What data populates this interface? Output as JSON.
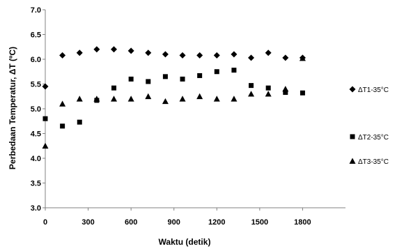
{
  "chart_data": {
    "type": "scatter",
    "title": "",
    "xlabel": "Waktu (detik)",
    "ylabel": "Perbedaan Temperatur,  ΔT (ºC)",
    "xlim": [
      0,
      2100
    ],
    "ylim": [
      3.0,
      7.0
    ],
    "xticks": [
      "0",
      "300",
      "600",
      "900",
      "1200",
      "1500",
      "1800"
    ],
    "yticks": [
      "3.0",
      "3.5",
      "4.0",
      "4.5",
      "5.0",
      "5.5",
      "6.0",
      "6.5",
      "7.0"
    ],
    "grid": false,
    "legend_position": "right",
    "series": [
      {
        "name": "ΔT1-35°C",
        "marker": "diamond",
        "color": "#000000",
        "x": [
          0,
          120,
          240,
          360,
          480,
          600,
          720,
          840,
          960,
          1080,
          1200,
          1320,
          1440,
          1560,
          1680,
          1800
        ],
        "y": [
          5.45,
          6.08,
          6.13,
          6.2,
          6.2,
          6.17,
          6.13,
          6.1,
          6.08,
          6.08,
          6.08,
          6.1,
          6.03,
          6.13,
          6.03,
          6.03
        ]
      },
      {
        "name": "ΔT2-35°C",
        "marker": "square",
        "color": "#000000",
        "x": [
          0,
          120,
          240,
          360,
          480,
          600,
          720,
          840,
          960,
          1080,
          1200,
          1320,
          1440,
          1560,
          1680,
          1800
        ],
        "y": [
          4.8,
          4.65,
          4.73,
          5.17,
          5.42,
          5.6,
          5.55,
          5.65,
          5.6,
          5.67,
          5.75,
          5.78,
          5.47,
          5.42,
          5.33,
          5.32
        ]
      },
      {
        "name": "ΔT3-35°C",
        "marker": "triangle",
        "color": "#000000",
        "x": [
          0,
          120,
          240,
          360,
          480,
          600,
          720,
          840,
          960,
          1080,
          1200,
          1320,
          1440,
          1560,
          1680,
          1800
        ],
        "y": [
          4.25,
          5.1,
          5.2,
          5.2,
          5.2,
          5.2,
          5.25,
          5.15,
          5.2,
          5.25,
          5.2,
          5.2,
          5.3,
          5.3,
          5.4,
          6.02
        ]
      }
    ]
  }
}
